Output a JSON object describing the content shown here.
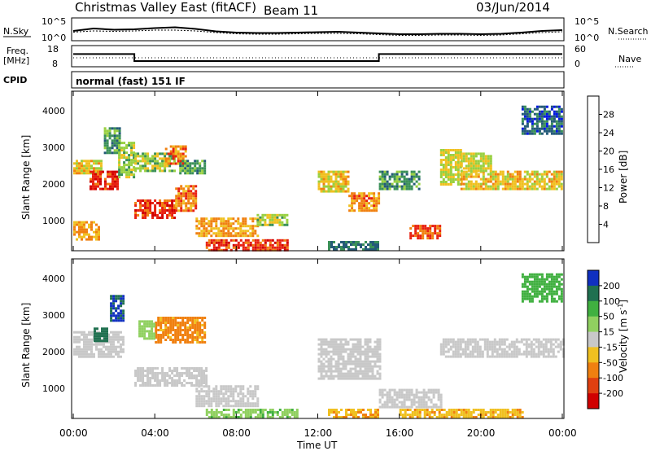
{
  "header": {
    "station": "Christmas Valley East (fitACF)",
    "beam": "Beam 11",
    "date": "03/Jun/2014"
  },
  "noise_panel": {
    "left_label": "N.Sky",
    "left_ticks": [
      "10^5",
      "10^0"
    ],
    "right_ticks": [
      "10^5",
      "10^0"
    ],
    "right_label": "N.Search"
  },
  "freq_panel": {
    "left_label_line1": "Freq.",
    "left_label_line2": "[MHz]",
    "left_ticks": [
      "18",
      "8"
    ],
    "right_ticks": [
      "60",
      "0"
    ],
    "right_label": "Nave"
  },
  "cpid": {
    "label": "CPID",
    "value": "normal (fast) 151 IF"
  },
  "time_axis": {
    "label": "Time UT",
    "ticks": [
      "00:00",
      "04:00",
      "08:00",
      "12:00",
      "16:00",
      "20:00",
      "00:00"
    ]
  },
  "power_panel": {
    "ylabel": "Slant Range [km]",
    "yticks": [
      "1000",
      "2000",
      "3000",
      "4000"
    ],
    "colorbar_label": "Power [dB]",
    "colorbar_ticks": [
      "4",
      "8",
      "12",
      "16",
      "20",
      "24",
      "28"
    ],
    "colorbar_colors": [
      "#0018e0",
      "#245a78",
      "#3a9058",
      "#98d040",
      "#f0c020",
      "#f08010",
      "#e82010",
      "#d00000"
    ]
  },
  "velocity_panel": {
    "ylabel": "Slant Range [km]",
    "yticks": [
      "1000",
      "2000",
      "3000",
      "4000"
    ],
    "colorbar_label": "Velocity [m s",
    "colorbar_label_sup": "-1",
    "colorbar_label_end": "]",
    "colorbar_ticks": [
      "200",
      "100",
      "50",
      "15",
      "-15",
      "-50",
      "-100",
      "-200"
    ],
    "colorbar_colors": [
      "#1030c0",
      "#207050",
      "#40b040",
      "#90d060",
      "#c8c8c8",
      "#f0c020",
      "#f08010",
      "#e04010",
      "#d00000"
    ]
  },
  "chart_data": {
    "type": "heatmap",
    "x_range_hours": [
      0,
      24
    ],
    "y_range_km": [
      180,
      4600
    ],
    "noise_sky_log10": [
      2.0,
      2.6,
      2.3,
      2.4,
      2.7,
      2.9,
      2.5,
      1.9,
      1.6,
      1.5,
      1.5,
      1.6,
      1.7,
      1.8,
      1.6,
      1.4,
      1.2,
      1.2,
      1.3,
      1.3,
      1.2,
      1.3,
      1.6,
      2.0,
      2.2
    ],
    "noise_search_log10": [
      1.9,
      2.2,
      2.1,
      2.2,
      2.4,
      2.4,
      2.2,
      1.8,
      1.5,
      1.4,
      1.4,
      1.5,
      1.6,
      1.6,
      1.5,
      1.3,
      1.1,
      1.1,
      1.2,
      1.2,
      1.1,
      1.2,
      1.5,
      1.8,
      2.0
    ],
    "frequency_mhz": [
      {
        "t0": 0,
        "t1": 3,
        "value": 14.8
      },
      {
        "t0": 3,
        "t1": 15,
        "value": 10.5
      },
      {
        "t0": 15,
        "t1": 24,
        "value": 14.8
      }
    ],
    "nave": 30,
    "power_regions": [
      {
        "t0": 0.0,
        "t1": 1.4,
        "r0": 2300,
        "r1": 2700,
        "db": 18
      },
      {
        "t0": 0.8,
        "t1": 2.2,
        "r0": 1900,
        "r1": 2400,
        "db": 26
      },
      {
        "t0": 0.0,
        "t1": 1.2,
        "r0": 500,
        "r1": 1000,
        "db": 20
      },
      {
        "t0": 1.5,
        "t1": 2.3,
        "r0": 2900,
        "r1": 3600,
        "db": 10
      },
      {
        "t0": 2.2,
        "t1": 3.0,
        "r0": 2200,
        "r1": 3200,
        "db": 14
      },
      {
        "t0": 3.0,
        "t1": 5.0,
        "r0": 1100,
        "r1": 1600,
        "db": 26
      },
      {
        "t0": 5.0,
        "t1": 6.0,
        "r0": 1300,
        "r1": 2000,
        "db": 22
      },
      {
        "t0": 3.0,
        "t1": 5.0,
        "r0": 2400,
        "r1": 2900,
        "db": 14
      },
      {
        "t0": 4.5,
        "t1": 5.5,
        "r0": 2600,
        "r1": 3100,
        "db": 22
      },
      {
        "t0": 5.2,
        "t1": 6.4,
        "r0": 2300,
        "r1": 2700,
        "db": 10
      },
      {
        "t0": 6.0,
        "t1": 9.0,
        "r0": 600,
        "r1": 1100,
        "db": 20
      },
      {
        "t0": 6.5,
        "t1": 10.5,
        "r0": 200,
        "r1": 500,
        "db": 26
      },
      {
        "t0": 9.0,
        "t1": 10.5,
        "r0": 900,
        "r1": 1200,
        "db": 14
      },
      {
        "t0": 12.0,
        "t1": 13.5,
        "r0": 1800,
        "r1": 2400,
        "db": 18
      },
      {
        "t0": 13.5,
        "t1": 15.0,
        "r0": 1300,
        "r1": 1800,
        "db": 22
      },
      {
        "t0": 12.5,
        "t1": 15.0,
        "r0": 200,
        "r1": 450,
        "db": 8
      },
      {
        "t0": 15.0,
        "t1": 17.0,
        "r0": 1900,
        "r1": 2400,
        "db": 10
      },
      {
        "t0": 16.5,
        "t1": 18.0,
        "r0": 500,
        "r1": 900,
        "db": 24
      },
      {
        "t0": 18.0,
        "t1": 19.0,
        "r0": 2000,
        "r1": 3000,
        "db": 16
      },
      {
        "t0": 19.0,
        "t1": 24.0,
        "r0": 1900,
        "r1": 2400,
        "db": 18
      },
      {
        "t0": 19.0,
        "t1": 20.5,
        "r0": 2400,
        "r1": 2900,
        "db": 16
      },
      {
        "t0": 22.0,
        "t1": 24.0,
        "r0": 3400,
        "r1": 4200,
        "db": 6
      }
    ],
    "velocity_regions": [
      {
        "t0": 0.0,
        "t1": 2.5,
        "r0": 1900,
        "r1": 2600,
        "v": 0
      },
      {
        "t0": 1.0,
        "t1": 1.6,
        "r0": 2300,
        "r1": 2700,
        "v": 180
      },
      {
        "t0": 1.8,
        "t1": 2.4,
        "r0": 2900,
        "r1": 3600,
        "v": 200
      },
      {
        "t0": 3.0,
        "t1": 6.5,
        "r0": 1100,
        "r1": 1600,
        "v": 0
      },
      {
        "t0": 4.0,
        "t1": 6.5,
        "r0": 2300,
        "r1": 3000,
        "v": -60
      },
      {
        "t0": 3.2,
        "t1": 4.0,
        "r0": 2400,
        "r1": 2900,
        "v": 30
      },
      {
        "t0": 6.0,
        "t1": 9.0,
        "r0": 500,
        "r1": 1100,
        "v": 0
      },
      {
        "t0": 6.5,
        "t1": 11.0,
        "r0": 200,
        "r1": 450,
        "v": 40
      },
      {
        "t0": 12.0,
        "t1": 15.0,
        "r0": 1300,
        "r1": 2400,
        "v": 0
      },
      {
        "t0": 12.5,
        "t1": 15.0,
        "r0": 200,
        "r1": 450,
        "v": -50
      },
      {
        "t0": 15.0,
        "t1": 18.0,
        "r0": 500,
        "r1": 1000,
        "v": 0
      },
      {
        "t0": 18.0,
        "t1": 24.0,
        "r0": 1900,
        "r1": 2400,
        "v": 0
      },
      {
        "t0": 16.0,
        "t1": 22.0,
        "r0": 200,
        "r1": 450,
        "v": -40
      },
      {
        "t0": 22.0,
        "t1": 24.0,
        "r0": 3400,
        "r1": 4200,
        "v": 80
      }
    ]
  }
}
